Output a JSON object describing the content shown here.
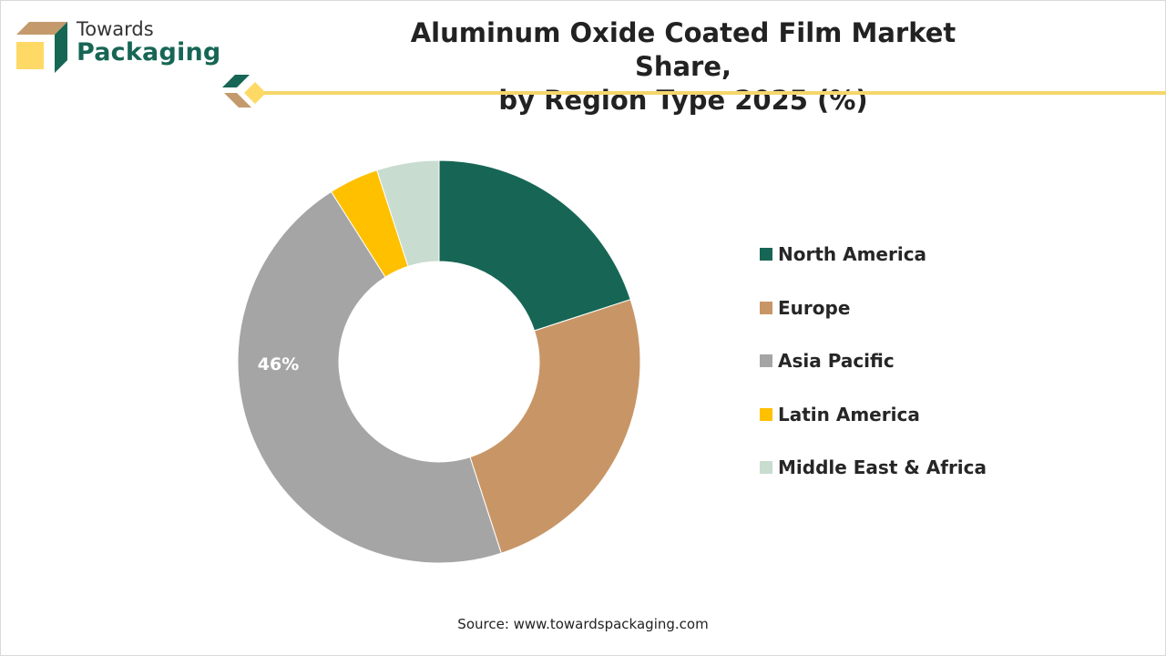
{
  "brand": {
    "line1": "Towards",
    "line2": "Packaging"
  },
  "colors": {
    "brand_green": "#176655",
    "brand_tan": "#c49a6c",
    "brand_yellow": "#f5d66b"
  },
  "chart_data": {
    "type": "pie",
    "donut": true,
    "title": "Aluminum Oxide Coated Film Market Share,",
    "subtitle": "by Region Type 2025 (%)",
    "categories": [
      "North America",
      "Europe",
      "Asia Pacific",
      "Latin America",
      "Middle East & Africa"
    ],
    "values": [
      20,
      25,
      46,
      4,
      5
    ],
    "colors": [
      "#176655",
      "#c89666",
      "#a5a5a5",
      "#ffc000",
      "#c8dccf"
    ],
    "data_labels": [
      "",
      "",
      "46%",
      "",
      ""
    ],
    "legend_position": "right"
  },
  "source": "Source: www.towardspackaging.com"
}
